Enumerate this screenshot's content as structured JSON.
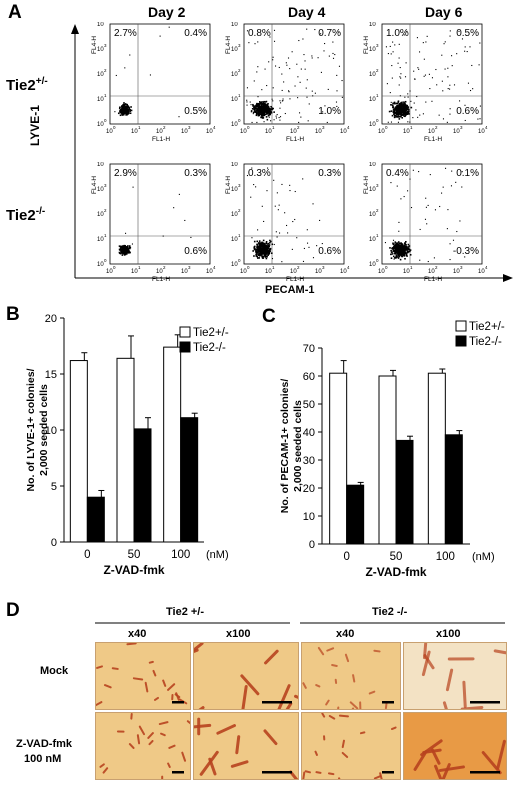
{
  "panel_a": {
    "letter": "A",
    "days": [
      "Day 2",
      "Day 4",
      "Day 6"
    ],
    "genotypes": [
      {
        "base": "Tie2",
        "sup": "+/-"
      },
      {
        "base": "Tie2",
        "sup": "-/-"
      }
    ],
    "y_label": "LYVE-1",
    "x_label": "PECAM-1",
    "plot_xlabel": "FL1-H",
    "plot_ylabel": "FL4-H",
    "tick_labels": [
      "10",
      "10",
      "10",
      "10",
      "10"
    ],
    "tick_exponents": [
      "0",
      "1",
      "2",
      "3",
      "4"
    ],
    "quadrants": [
      [
        {
          "ul": "2.7%",
          "ur": "0.4%",
          "lr": "0.5%"
        },
        {
          "ul": "0.8%",
          "ur": "0.7%",
          "lr": "1.0%"
        },
        {
          "ul": "1.0%",
          "ur": "0.5%",
          "lr": "0.6%"
        }
      ],
      [
        {
          "ul": "2.9%",
          "ur": "0.3%",
          "lr": "0.6%"
        },
        {
          "ul": "0.3%",
          "ur": "0.3%",
          "lr": "0.6%"
        },
        {
          "ul": "0.4%",
          "ur": "0.1%",
          "lr": "-0.3%"
        }
      ]
    ]
  },
  "chart_data": [
    {
      "type": "bar",
      "panel": "B",
      "categories": [
        "0",
        "50",
        "100"
      ],
      "unit": "(nM)",
      "xlabel": "Z-VAD-fmk",
      "ylabel": "No. of LYVE-1+ colonies/ 2,000 seeded cells",
      "ylim": [
        0,
        20
      ],
      "yticks": [
        "0",
        "5",
        "10",
        "15",
        "20"
      ],
      "series": [
        {
          "name": "Tie2+/-",
          "values": [
            16.2,
            16.4,
            17.4
          ],
          "errors": [
            0.7,
            2.0,
            1.1
          ],
          "color": "#ffffff"
        },
        {
          "name": "Tie2-/-",
          "values": [
            4.0,
            10.1,
            11.1
          ],
          "errors": [
            0.6,
            1.0,
            0.4
          ],
          "color": "#000000"
        }
      ]
    },
    {
      "type": "bar",
      "panel": "C",
      "categories": [
        "0",
        "50",
        "100"
      ],
      "unit": "(nM)",
      "xlabel": "Z-VAD-fmk",
      "ylabel": "No. of PECAM-1+ colonies/ 2,000 seeded cells",
      "ylim": [
        0,
        70
      ],
      "yticks": [
        "0",
        "10",
        "20",
        "30",
        "40",
        "50",
        "60",
        "70"
      ],
      "series": [
        {
          "name": "Tie2+/-",
          "values": [
            61,
            60,
            61
          ],
          "errors": [
            4.5,
            2.0,
            1.5
          ],
          "color": "#ffffff"
        },
        {
          "name": "Tie2-/-",
          "values": [
            21,
            37,
            39
          ],
          "errors": [
            1.0,
            1.5,
            1.5
          ],
          "color": "#000000"
        }
      ]
    }
  ],
  "panel_d": {
    "letter": "D",
    "groups": [
      "Tie2 +/-",
      "Tie2 -/-"
    ],
    "mags": [
      "x40",
      "x100",
      "x40",
      "x100"
    ],
    "rows": [
      "Mock",
      "Z-VAD-fmk",
      "100 nM"
    ]
  },
  "colors": {
    "photo_bg": "#efc987",
    "photo_bg_light": "#f3e2c4",
    "cells": "#b8431f",
    "scale_bar": "#000000"
  }
}
